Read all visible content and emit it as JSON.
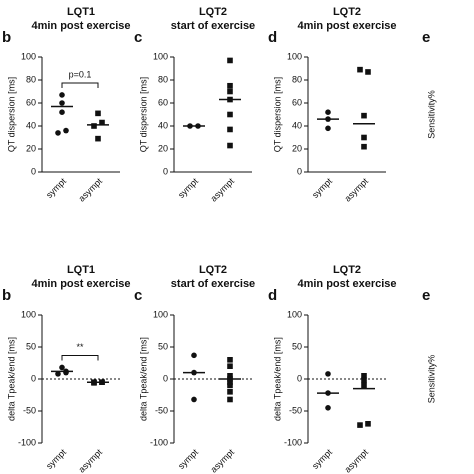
{
  "chart_data": [
    {
      "type": "dot",
      "label": "b",
      "title": "LQT1",
      "subtitle": "4min post exercise",
      "ylabel": "QT dispersion [ms]",
      "categories": [
        "sympt",
        "asympt"
      ],
      "markers": [
        "circle",
        "square"
      ],
      "groups": [
        [
          67,
          60,
          52,
          36,
          34
        ],
        [
          51,
          43,
          40,
          29
        ]
      ],
      "means": [
        57,
        41
      ],
      "ylim": [
        0,
        100
      ],
      "yticks": [
        0,
        20,
        40,
        60,
        80,
        100
      ],
      "annotation": "p=0.1",
      "zero_line": false
    },
    {
      "type": "dot",
      "label": "c",
      "title": "LQT2",
      "subtitle": "start of exercise",
      "ylabel": "QT dispersion [ms]",
      "categories": [
        "sympt",
        "asympt"
      ],
      "markers": [
        "circle",
        "square"
      ],
      "groups": [
        [
          40,
          40
        ],
        [
          97,
          75,
          70,
          63,
          50,
          37,
          23
        ]
      ],
      "means": [
        40,
        63
      ],
      "ylim": [
        0,
        100
      ],
      "yticks": [
        0,
        20,
        40,
        60,
        80,
        100
      ],
      "zero_line": false
    },
    {
      "type": "dot",
      "label": "d",
      "title": "LQT2",
      "subtitle": "4min post exercise",
      "ylabel": "QT dispersion [ms]",
      "categories": [
        "sympt",
        "asympt"
      ],
      "markers": [
        "circle",
        "square"
      ],
      "groups": [
        [
          52,
          46,
          38
        ],
        [
          89,
          87,
          49,
          30,
          22
        ]
      ],
      "means": [
        46,
        42
      ],
      "ylim": [
        0,
        100
      ],
      "yticks": [
        0,
        20,
        40,
        60,
        80,
        100
      ],
      "zero_line": false
    },
    {
      "type": "cropped",
      "label": "e",
      "title": "L",
      "ylabel": "Sensitivity%"
    },
    {
      "type": "dot",
      "label": "b",
      "title": "LQT1",
      "subtitle": "4min post exercise",
      "ylabel": "delta Tpeak/end [ms]",
      "categories": [
        "sympt",
        "asympt"
      ],
      "markers": [
        "circle",
        "square"
      ],
      "groups": [
        [
          18,
          10,
          8,
          12
        ],
        [
          -5,
          -5,
          -6,
          -5
        ]
      ],
      "means": [
        12,
        -5
      ],
      "ylim": [
        -100,
        100
      ],
      "yticks": [
        -100,
        -50,
        0,
        50,
        100
      ],
      "annotation": "**",
      "zero_line": true
    },
    {
      "type": "dot",
      "label": "c",
      "title": "LQT2",
      "subtitle": "start of exercise",
      "ylabel": "delta Tpeak/end [ms]",
      "categories": [
        "sympt",
        "asympt"
      ],
      "markers": [
        "circle",
        "square"
      ],
      "groups": [
        [
          37,
          10,
          -32
        ],
        [
          30,
          20,
          5,
          0,
          -5,
          -10,
          -20,
          -32
        ]
      ],
      "means": [
        10,
        0
      ],
      "ylim": [
        -100,
        100
      ],
      "yticks": [
        -100,
        -50,
        0,
        50,
        100
      ],
      "zero_line": true
    },
    {
      "type": "dot",
      "label": "d",
      "title": "LQT2",
      "subtitle": "4min post exercise",
      "ylabel": "delta Tpeak/end [ms]",
      "categories": [
        "sympt",
        "asympt"
      ],
      "markers": [
        "circle",
        "square"
      ],
      "groups": [
        [
          8,
          -22,
          -45
        ],
        [
          5,
          -2,
          -10,
          -70,
          -72
        ]
      ],
      "means": [
        -22,
        -15
      ],
      "ylim": [
        -100,
        100
      ],
      "yticks": [
        -100,
        -50,
        0,
        50,
        100
      ],
      "zero_line": true
    },
    {
      "type": "cropped",
      "label": "e",
      "title": "LC",
      "ylabel": "Sensitivity%"
    }
  ]
}
